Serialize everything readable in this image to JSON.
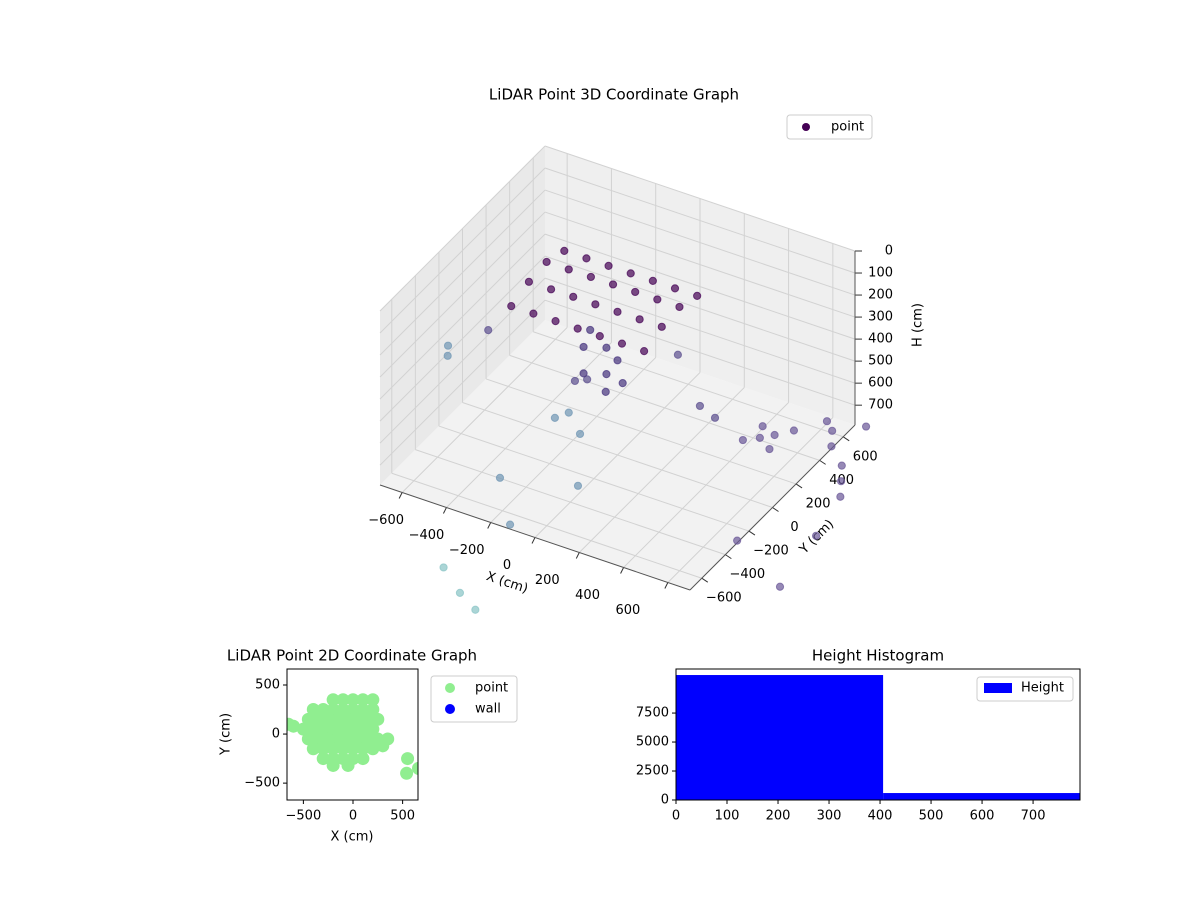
{
  "chart_data": [
    {
      "type": "scatter3d",
      "title": "LiDAR Point 3D Coordinate Graph",
      "xlabel": "X (cm)",
      "ylabel": "Y (cm)",
      "zlabel": "H (cm)",
      "xlim": [
        -700,
        700
      ],
      "ylim": [
        -700,
        700
      ],
      "zlim": [
        0,
        790
      ],
      "z_inverted": true,
      "xticks": [
        {
          "value": -600,
          "label": "−600"
        },
        {
          "value": -400,
          "label": "−400"
        },
        {
          "value": -200,
          "label": "−200"
        },
        0,
        200,
        400,
        600
      ],
      "yticks": [
        {
          "value": -600,
          "label": "−600"
        },
        {
          "value": -400,
          "label": "−400"
        },
        {
          "value": -200,
          "label": "−200"
        },
        0,
        200,
        400,
        600
      ],
      "zticks": [
        0,
        100,
        200,
        300,
        400,
        500,
        600,
        700
      ],
      "grid": true,
      "legend": "upper right",
      "alpha": 0.7,
      "series": [
        {
          "name": "point",
          "color": "#440154",
          "x": [
            -400,
            -400,
            -400,
            -400,
            -300,
            -300,
            -300,
            -300,
            -200,
            -200,
            -200,
            -200,
            -100,
            -100,
            -100,
            -100,
            0,
            0,
            0,
            0,
            100,
            100,
            100,
            100,
            200,
            200,
            200,
            200,
            -100,
            -100,
            -50,
            -50,
            0,
            0,
            50,
            -150,
            430,
            470,
            400,
            500,
            380,
            520,
            600,
            650,
            700,
            750,
            800,
            850,
            900,
            950,
            700,
            1000,
            -312,
            -22,
            -120,
            -59,
            -200,
            50,
            -933,
            -900,
            -850,
            -329,
            -190,
            -300,
            120,
            211,
            -386,
            -127,
            -350
          ],
          "y": [
            -150,
            0,
            150,
            300,
            -150,
            0,
            150,
            300,
            -150,
            0,
            150,
            300,
            -150,
            0,
            150,
            300,
            -150,
            0,
            150,
            300,
            -150,
            0,
            150,
            300,
            -150,
            0,
            150,
            300,
            -100,
            -100,
            0,
            0,
            -100,
            0,
            -50,
            50,
            400,
            450,
            480,
            350,
            350,
            520,
            650,
            600,
            500,
            700,
            400,
            300,
            200,
            -100,
            -300,
            -500,
            -411,
            -294,
            -686,
            -1226,
            -1100,
            -1300,
            315,
            250,
            500,
            87,
            39,
            150,
            474,
            431,
            364,
            751,
            400
          ],
          "z": [
            170,
            140,
            130,
            160,
            170,
            140,
            130,
            160,
            170,
            140,
            130,
            160,
            170,
            140,
            130,
            160,
            170,
            140,
            130,
            160,
            170,
            140,
            130,
            160,
            170,
            140,
            130,
            160,
            280,
            400,
            320,
            440,
            450,
            360,
            420,
            300,
            780,
            780,
            780,
            780,
            780,
            780,
            780,
            780,
            780,
            780,
            780,
            780,
            780,
            780,
            780,
            780,
            780,
            780,
            780,
            780,
            780,
            780,
            780,
            780,
            780,
            780,
            780,
            780,
            780,
            780,
            780,
            780,
            780
          ],
          "colors": [
            "#440154",
            "#440154",
            "#440154",
            "#440154",
            "#440154",
            "#440154",
            "#440154",
            "#440154",
            "#440154",
            "#440154",
            "#440154",
            "#440154",
            "#440154",
            "#440154",
            "#440154",
            "#440154",
            "#440154",
            "#440154",
            "#440154",
            "#440154",
            "#440154",
            "#440154",
            "#440154",
            "#440154",
            "#440154",
            "#440154",
            "#440154",
            "#440154",
            "#46337e",
            "#46337e",
            "#46337e",
            "#46337e",
            "#46337e",
            "#46337e",
            "#46337e",
            "#46337e",
            "#6a5797",
            "#6a5797",
            "#6a5797",
            "#6a5797",
            "#6a5797",
            "#6a5797",
            "#6a5797",
            "#6a5797",
            "#6a5797",
            "#6a5797",
            "#6a5797",
            "#6a5797",
            "#6a5797",
            "#6a5797",
            "#6a5797",
            "#6a5797",
            "#6f95b4",
            "#6f95b4",
            "#6f95b4",
            "#88c3c4",
            "#88c3c4",
            "#88c3c4",
            "#6f95b4",
            "#6f95b4",
            "#5b4e8f",
            "#6f95b4",
            "#6f95b4",
            "#6f95b4",
            "#5b4e8f",
            "#5b4e8f",
            "#5b4e8f",
            "#5b4e8f",
            "#5b4e8f"
          ]
        }
      ]
    },
    {
      "type": "scatter",
      "title": "LiDAR Point 2D Coordinate Graph",
      "xlabel": "X (cm)",
      "ylabel": "Y (cm)",
      "xlim": [
        -665,
        655
      ],
      "ylim": [
        -672,
        663
      ],
      "xticks": [
        {
          "value": -500,
          "label": "−500"
        },
        0,
        500
      ],
      "yticks": [
        {
          "value": -500,
          "label": "−500"
        },
        0,
        500
      ],
      "legend": "outside right",
      "series": [
        {
          "name": "point",
          "color": "#90ee90",
          "x": [
            -200,
            -100,
            0,
            100,
            200,
            -400,
            -300,
            -200,
            -100,
            0,
            100,
            200,
            -450,
            -350,
            -250,
            -150,
            -50,
            50,
            150,
            250,
            -500,
            -400,
            -300,
            -200,
            -100,
            0,
            100,
            200,
            -450,
            -350,
            -250,
            -150,
            -50,
            50,
            150,
            250,
            350,
            -400,
            -300,
            -200,
            -100,
            0,
            100,
            200,
            -300,
            -200,
            -100,
            0,
            100,
            -200,
            -50,
            -650,
            -600,
            550,
            540,
            660,
            300
          ],
          "y": [
            350,
            350,
            350,
            350,
            350,
            250,
            250,
            250,
            250,
            250,
            250,
            250,
            150,
            150,
            150,
            150,
            150,
            150,
            150,
            150,
            50,
            50,
            50,
            50,
            50,
            50,
            50,
            50,
            -50,
            -50,
            -50,
            -50,
            -50,
            -50,
            -50,
            -50,
            -50,
            -150,
            -150,
            -150,
            -150,
            -150,
            -150,
            -150,
            -250,
            -250,
            -250,
            -250,
            -250,
            -320,
            -320,
            100,
            80,
            -250,
            -400,
            -350,
            -120
          ]
        },
        {
          "name": "wall",
          "color": "#0000ff",
          "x": [],
          "y": []
        }
      ]
    },
    {
      "type": "histogram",
      "title": "Height Histogram",
      "bins": [
        0,
        406,
        792
      ],
      "xlim": [
        0,
        792
      ],
      "ylim": [
        0,
        11300
      ],
      "xticks": [
        0,
        100,
        200,
        300,
        400,
        500,
        600,
        700
      ],
      "yticks": [
        0,
        2500,
        5000,
        7500
      ],
      "legend": "upper right",
      "series": [
        {
          "name": "Height",
          "color": "#0000ff",
          "values": [
            10780,
            600
          ]
        }
      ]
    }
  ]
}
